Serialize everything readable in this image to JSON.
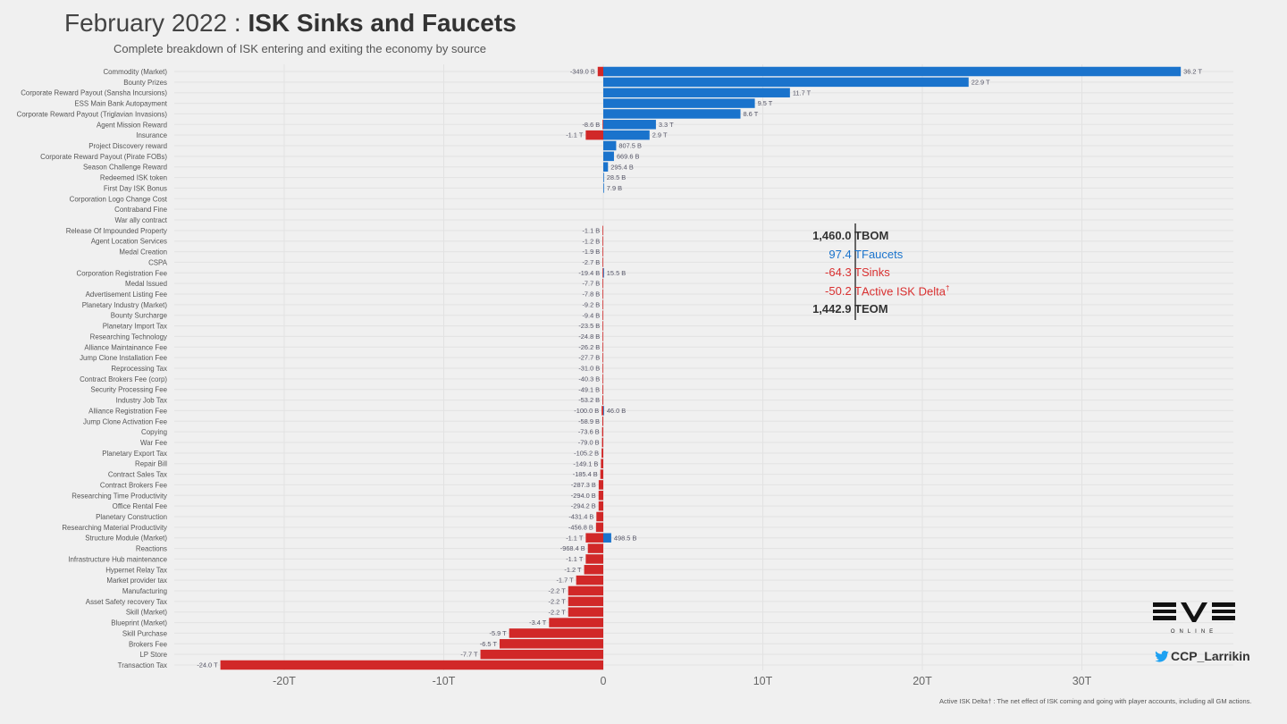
{
  "header": {
    "title_prefix": "February 2022 : ",
    "title_bold": "ISK Sinks and Faucets",
    "subtitle": "Complete breakdown of ISK entering and exiting the economy by source"
  },
  "summary": {
    "rows": [
      {
        "value": "1,460.0 T",
        "label": "BOM",
        "color": "#333333"
      },
      {
        "value": "97.4 T",
        "label": "Faucets",
        "color": "#1a73cc"
      },
      {
        "value": "-64.3 T",
        "label": "Sinks",
        "color": "#d93030"
      },
      {
        "value": "-50.2 T",
        "label": "Active ISK Delta",
        "sup": "†",
        "color": "#d93030"
      },
      {
        "value": "1,442.9 T",
        "label": "EOM",
        "color": "#333333"
      }
    ]
  },
  "branding": {
    "logo_text": "EVE ONLINE",
    "twitter_handle": "CCP_Larrikin"
  },
  "footnote": "Active ISK Delta† : The net effect of ISK coming and going with player accounts, including all GM actions.",
  "chart_data": {
    "type": "bar",
    "orientation": "horizontal",
    "unit": "T (trillion ISK)",
    "xlim": [
      -27,
      39
    ],
    "xticks": [
      -20,
      -10,
      0,
      10,
      20,
      30
    ],
    "xtick_labels": [
      "-20T",
      "-10T",
      "0",
      "10T",
      "20T",
      "30T"
    ],
    "grid": true,
    "colors": {
      "faucets": "#1a73cc",
      "sinks": "#d12828"
    },
    "categories": [
      "Commodity (Market)",
      "Bounty Prizes",
      "Corporate Reward Payout (Sansha Incursions)",
      "ESS Main Bank Autopayment",
      "Corporate Reward Payout (Triglavian Invasions)",
      "Agent Mission Reward",
      "Insurance",
      "Project Discovery reward",
      "Corporate Reward Payout (Pirate FOBs)",
      "Season Challenge Reward",
      "Redeemed ISK token",
      "First Day ISK Bonus",
      "Corporation Logo Change Cost",
      "Contraband Fine",
      "War ally contract",
      "Release Of Impounded Property",
      "Agent Location Services",
      "Medal Creation",
      "CSPA",
      "Corporation Registration Fee",
      "Medal Issued",
      "Advertisement Listing Fee",
      "Planetary Industry (Market)",
      "Bounty Surcharge",
      "Planetary Import Tax",
      "Researching Technology",
      "Alliance Maintainance Fee",
      "Jump Clone Installation Fee",
      "Reprocessing Tax",
      "Contract Brokers Fee (corp)",
      "Security Processing Fee",
      "Industry Job Tax",
      "Alliance Registration Fee",
      "Jump Clone Activation Fee",
      "Copying",
      "War Fee",
      "Planetary Export Tax",
      "Repair Bill",
      "Contract Sales Tax",
      "Contract Brokers Fee",
      "Researching Time Productivity",
      "Office Rental Fee",
      "Planetary Construction",
      "Researching Material Productivity",
      "Structure Module (Market)",
      "Reactions",
      "Infrastructure Hub maintenance",
      "Hypernet Relay Tax",
      "Market provider tax",
      "Manufacturing",
      "Asset Safety recovery Tax",
      "Skill (Market)",
      "Blueprint (Market)",
      "Skill Purchase",
      "Brokers Fee",
      "LP Store",
      "Transaction Tax"
    ],
    "series": [
      {
        "key": "faucets",
        "values": [
          36.2,
          22.9,
          11.7,
          9.5,
          8.6,
          3.3,
          2.9,
          0.8075,
          0.6696,
          0.2954,
          0.0285,
          0.0079,
          null,
          null,
          null,
          null,
          null,
          null,
          null,
          0.0155,
          null,
          null,
          null,
          null,
          null,
          null,
          null,
          null,
          null,
          null,
          null,
          null,
          0.046,
          null,
          null,
          null,
          null,
          null,
          null,
          null,
          null,
          null,
          null,
          null,
          0.4985,
          null,
          null,
          null,
          null,
          null,
          null,
          null,
          null,
          null,
          null,
          null,
          null
        ],
        "labels": [
          "36.2 T",
          "22.9 T",
          "11.7 T",
          "9.5 T",
          "8.6 T",
          "3.3 T",
          "2.9 T",
          "807.5 B",
          "669.6 B",
          "295.4 B",
          "28.5 B",
          "7.9 B",
          null,
          null,
          null,
          null,
          null,
          null,
          null,
          "15.5 B",
          null,
          null,
          null,
          null,
          null,
          null,
          null,
          null,
          null,
          null,
          null,
          null,
          "46.0 B",
          null,
          null,
          null,
          null,
          null,
          null,
          null,
          null,
          null,
          null,
          null,
          "498.5 B",
          null,
          null,
          null,
          null,
          null,
          null,
          null,
          null,
          null,
          null,
          null,
          null
        ]
      },
      {
        "key": "sinks",
        "values": [
          -0.349,
          null,
          null,
          null,
          null,
          -0.0086,
          -1.1,
          null,
          null,
          null,
          null,
          null,
          null,
          null,
          null,
          -0.0011,
          -0.0012,
          -0.0019,
          -0.0027,
          -0.0194,
          -0.0077,
          -0.0078,
          -0.0092,
          -0.0094,
          -0.0235,
          -0.0248,
          -0.0262,
          -0.0277,
          -0.031,
          -0.0403,
          -0.0491,
          -0.0532,
          -0.1,
          -0.0589,
          -0.0736,
          -0.079,
          -0.1052,
          -0.1491,
          -0.1854,
          -0.2873,
          -0.294,
          -0.2942,
          -0.4314,
          -0.4568,
          -1.1,
          -0.9684,
          -1.1,
          -1.2,
          -1.7,
          -2.2,
          -2.2,
          -2.2,
          -3.4,
          -5.9,
          -6.5,
          -7.7,
          -24.0
        ],
        "labels": [
          "-349.0 B",
          null,
          null,
          null,
          null,
          "-8.6 B",
          "-1.1 T",
          null,
          null,
          null,
          null,
          null,
          null,
          null,
          null,
          "-1.1 B",
          "-1.2 B",
          "-1.9 B",
          "-2.7 B",
          "-19.4 B",
          "-7.7 B",
          "-7.8 B",
          "-9.2 B",
          "-9.4 B",
          "-23.5 B",
          "-24.8 B",
          "-26.2 B",
          "-27.7 B",
          "-31.0 B",
          "-40.3 B",
          "-49.1 B",
          "-53.2 B",
          "-100.0 B",
          "-58.9 B",
          "-73.6 B",
          "-79.0 B",
          "-105.2 B",
          "-149.1 B",
          "-185.4 B",
          "-287.3 B",
          "-294.0 B",
          "-294.2 B",
          "-431.4 B",
          "-456.8 B",
          "-1.1 T",
          "-968.4 B",
          "-1.1 T",
          "-1.2 T",
          "-1.7 T",
          "-2.2 T",
          "-2.2 T",
          "-2.2 T",
          "-3.4 T",
          "-5.9 T",
          "-6.5 T",
          "-7.7 T",
          "-24.0 T"
        ]
      }
    ]
  }
}
